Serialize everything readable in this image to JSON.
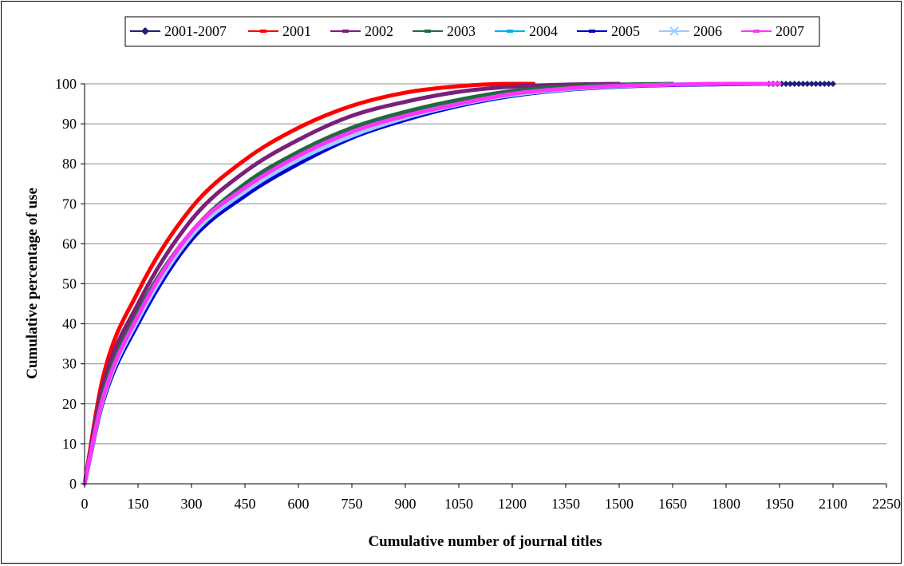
{
  "chart_data": {
    "type": "line",
    "title": "",
    "xlabel": "Cumulative number of journal titles",
    "ylabel": "Cumulative percentage of use",
    "xlim": [
      0,
      2250
    ],
    "ylim": [
      0,
      100
    ],
    "xticks": [
      "0",
      "150",
      "300",
      "450",
      "600",
      "750",
      "900",
      "1050",
      "1200",
      "1350",
      "1500",
      "1650",
      "1800",
      "1950",
      "2100",
      "2250"
    ],
    "yticks": [
      "0",
      "10",
      "20",
      "30",
      "40",
      "50",
      "60",
      "70",
      "80",
      "90",
      "100"
    ],
    "grid": "horizontal",
    "legend_position": "top",
    "series": [
      {
        "name": "2001-2007",
        "color": "#1F1F7A",
        "marker": "diamond",
        "x": [
          0,
          50,
          150,
          300,
          450,
          600,
          750,
          900,
          1050,
          1200,
          1350,
          1500,
          1650,
          1800,
          1950,
          2100
        ],
        "y": [
          0,
          20,
          41,
          62,
          73,
          81,
          87,
          91,
          95,
          97.5,
          98.8,
          99.4,
          99.7,
          99.9,
          100,
          100
        ]
      },
      {
        "name": "2001",
        "color": "#FF0000",
        "marker": "dash",
        "x": [
          0,
          50,
          150,
          300,
          450,
          600,
          750,
          900,
          1050,
          1200,
          1260
        ],
        "y": [
          0,
          26,
          48,
          69,
          81,
          89,
          94.5,
          97.8,
          99.4,
          100,
          100
        ]
      },
      {
        "name": "2002",
        "color": "#7B1F7B",
        "marker": "dash",
        "x": [
          0,
          50,
          150,
          300,
          450,
          600,
          750,
          900,
          1050,
          1200,
          1350,
          1500
        ],
        "y": [
          0,
          24,
          45,
          66,
          78,
          86,
          92,
          95.5,
          98,
          99.3,
          99.8,
          100
        ]
      },
      {
        "name": "2003",
        "color": "#1F6B3F",
        "marker": "dash",
        "x": [
          0,
          50,
          150,
          300,
          450,
          600,
          750,
          900,
          1050,
          1200,
          1350,
          1500,
          1650
        ],
        "y": [
          0,
          22,
          43,
          63,
          75,
          83,
          89,
          93,
          96,
          98.2,
          99.3,
          99.8,
          100
        ]
      },
      {
        "name": "2004",
        "color": "#00B0F0",
        "marker": "dash",
        "x": [
          0,
          50,
          150,
          300,
          450,
          600,
          750,
          900,
          1050,
          1200,
          1350,
          1500,
          1650,
          1800
        ],
        "y": [
          0,
          20,
          40,
          61,
          72,
          80,
          86.5,
          91,
          94.5,
          97,
          98.5,
          99.3,
          99.8,
          100
        ]
      },
      {
        "name": "2005",
        "color": "#0000CC",
        "marker": "dash",
        "x": [
          0,
          50,
          150,
          300,
          450,
          600,
          750,
          900,
          1050,
          1200,
          1350,
          1500,
          1650,
          1800,
          1950
        ],
        "y": [
          0,
          20,
          40,
          61,
          72,
          80,
          86.5,
          91,
          94.5,
          97,
          98.5,
          99.3,
          99.7,
          99.9,
          100
        ]
      },
      {
        "name": "2006",
        "color": "#99CCFF",
        "marker": "x",
        "x": [
          0,
          50,
          150,
          300,
          450,
          600,
          750,
          900,
          1050,
          1200,
          1350,
          1500,
          1650,
          1800,
          1950
        ],
        "y": [
          0,
          20.5,
          41,
          62,
          73,
          81,
          87,
          91.5,
          94.8,
          97.2,
          98.6,
          99.4,
          99.8,
          100,
          100
        ]
      },
      {
        "name": "2007",
        "color": "#FF33FF",
        "marker": "dash",
        "x": [
          0,
          50,
          150,
          300,
          450,
          600,
          750,
          900,
          1050,
          1200,
          1350,
          1500,
          1650,
          1800,
          1950
        ],
        "y": [
          0,
          21,
          42,
          63,
          74,
          82,
          88,
          92,
          95,
          97.5,
          98.8,
          99.5,
          99.8,
          100,
          100
        ]
      }
    ]
  }
}
